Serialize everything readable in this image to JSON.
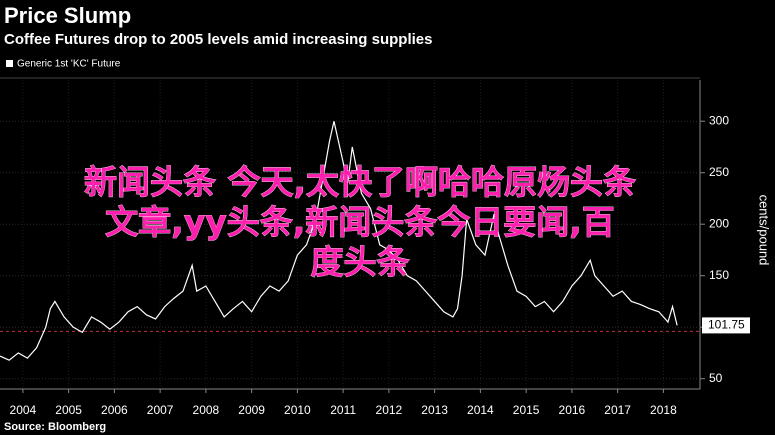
{
  "chart_data": {
    "type": "line",
    "title": "Price Slump",
    "subtitle": "Coffee Futures drop to 2005 levels amid increasing supplies",
    "y_axis_label": "cents/pound",
    "source": "Source: Bloomberg",
    "overlay_text": [
      "新闻头条 今天,太快了啊哈哈原炀头条",
      "文章,yy头条,新闻头条今日要闻,百",
      "度头条"
    ],
    "series": [
      {
        "name": "Generic 1st 'KC' Future",
        "color": "#ffffff",
        "x": [
          2004.0,
          2004.2,
          2004.4,
          2004.6,
          2004.8,
          2005.0,
          2005.1,
          2005.2,
          2005.4,
          2005.6,
          2005.8,
          2006.0,
          2006.2,
          2006.4,
          2006.6,
          2006.8,
          2007.0,
          2007.2,
          2007.4,
          2007.6,
          2007.8,
          2008.0,
          2008.2,
          2008.3,
          2008.5,
          2008.7,
          2008.9,
          2009.1,
          2009.3,
          2009.5,
          2009.7,
          2009.9,
          2010.1,
          2010.3,
          2010.5,
          2010.7,
          2010.9,
          2011.1,
          2011.2,
          2011.3,
          2011.5,
          2011.6,
          2011.7,
          2011.9,
          2012.1,
          2012.3,
          2012.5,
          2012.7,
          2012.9,
          2013.1,
          2013.3,
          2013.5,
          2013.7,
          2013.9,
          2014.0,
          2014.1,
          2014.2,
          2014.4,
          2014.6,
          2014.8,
          2014.9,
          2015.1,
          2015.3,
          2015.5,
          2015.7,
          2015.9,
          2016.1,
          2016.3,
          2016.5,
          2016.7,
          2016.9,
          2017.0,
          2017.2,
          2017.4,
          2017.6,
          2017.8,
          2018.0,
          2018.2,
          2018.4,
          2018.6,
          2018.7,
          2018.8
        ],
        "values": [
          72,
          68,
          75,
          70,
          80,
          100,
          118,
          125,
          110,
          100,
          95,
          110,
          105,
          98,
          105,
          115,
          120,
          112,
          108,
          120,
          128,
          135,
          160,
          135,
          140,
          125,
          110,
          118,
          125,
          115,
          130,
          140,
          135,
          145,
          170,
          180,
          205,
          255,
          280,
          300,
          260,
          240,
          275,
          230,
          215,
          180,
          175,
          165,
          150,
          145,
          135,
          125,
          115,
          110,
          118,
          150,
          205,
          180,
          170,
          210,
          190,
          160,
          135,
          130,
          120,
          125,
          115,
          125,
          140,
          150,
          165,
          150,
          140,
          130,
          135,
          125,
          122,
          118,
          115,
          105,
          120,
          101.75
        ]
      }
    ],
    "reference_line": 96,
    "xlim": [
      2004.0,
      2019.3
    ],
    "ylim": [
      40,
      340
    ],
    "xticks": [
      {
        "value": 2004.5,
        "label": "2004"
      },
      {
        "value": 2005.5,
        "label": "2005"
      },
      {
        "value": 2006.5,
        "label": "2006"
      },
      {
        "value": 2007.5,
        "label": "2007"
      },
      {
        "value": 2008.5,
        "label": "2008"
      },
      {
        "value": 2009.5,
        "label": "2009"
      },
      {
        "value": 2010.5,
        "label": "2010"
      },
      {
        "value": 2011.5,
        "label": "2011"
      },
      {
        "value": 2012.5,
        "label": "2012"
      },
      {
        "value": 2013.5,
        "label": "2013"
      },
      {
        "value": 2014.5,
        "label": "2014"
      },
      {
        "value": 2015.5,
        "label": "2015"
      },
      {
        "value": 2016.5,
        "label": "2016"
      },
      {
        "value": 2017.5,
        "label": "2017"
      },
      {
        "value": 2018.5,
        "label": "2018"
      }
    ],
    "yticks": [
      50,
      100,
      150,
      200,
      250,
      300
    ],
    "grid": true
  }
}
